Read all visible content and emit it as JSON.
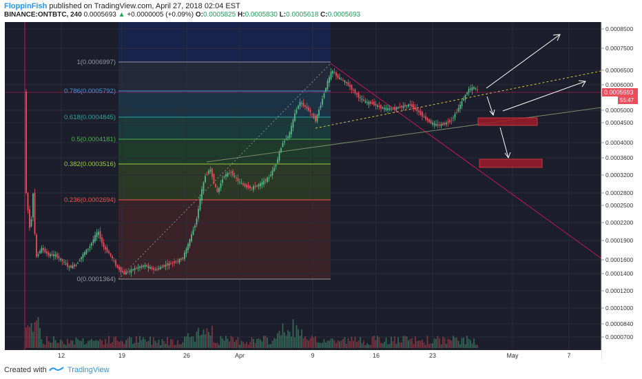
{
  "header": {
    "author": "FloppinFish",
    "published_text": "published on TradingView.com, April 27, 2018 02:04 EST",
    "symbol": "BINANCE:ONTBTC, 240",
    "last": "0.0005693",
    "change_arrow": "▲",
    "change": "+0.0000005 (+0.09%)",
    "o_label": "O:",
    "o": "0.0005825",
    "h_label": "H:",
    "h": "0.0005830",
    "l_label": "L:",
    "l": "0.0005618",
    "c_label": "C:",
    "c": "0.0005693"
  },
  "footer": {
    "created_with": "Created with",
    "brand": "TradingView",
    "logo_icon": "tradingview-logo-icon"
  },
  "chart_data": {
    "type": "candlestick",
    "price_axis_labels": [
      "0.0008500",
      "0.0007500",
      "0.0006500",
      "0.0006000",
      "0.0005000",
      "0.0004500",
      "0.0004000",
      "0.0003600",
      "0.0003200",
      "0.0002800",
      "0.0002500",
      "0.0002200",
      "0.0001900",
      "0.0001600",
      "0.0001400",
      "0.0001200",
      "0.0001000",
      "0.0000840",
      "0.0000700"
    ],
    "time_axis_labels": [
      "12",
      "19",
      "26",
      "Apr",
      "9",
      "16",
      "23",
      "May",
      "7"
    ],
    "current_price_tag": "0.0005693",
    "countdown": "55:47",
    "fib_levels": [
      {
        "label": "1(0.0006997)",
        "color": "#9598a1"
      },
      {
        "label": "0.786(0.0005792)",
        "color": "#4a90d9"
      },
      {
        "label": "0.618(0.0004845)",
        "color": "#26a69a"
      },
      {
        "label": "0.5(0.0004181)",
        "color": "#4caf50"
      },
      {
        "label": "0.382(0.0003516)",
        "color": "#9ccc3c"
      },
      {
        "label": "0.236(0.0002694)",
        "color": "#ef5350"
      },
      {
        "label": "0(0.0001364)",
        "color": "#9598a1"
      }
    ],
    "colors": {
      "background": "#1c1f2b",
      "up": "#53b987",
      "down": "#eb4d5c",
      "grid": "#2a2e39",
      "axis_text": "#333333"
    }
  }
}
